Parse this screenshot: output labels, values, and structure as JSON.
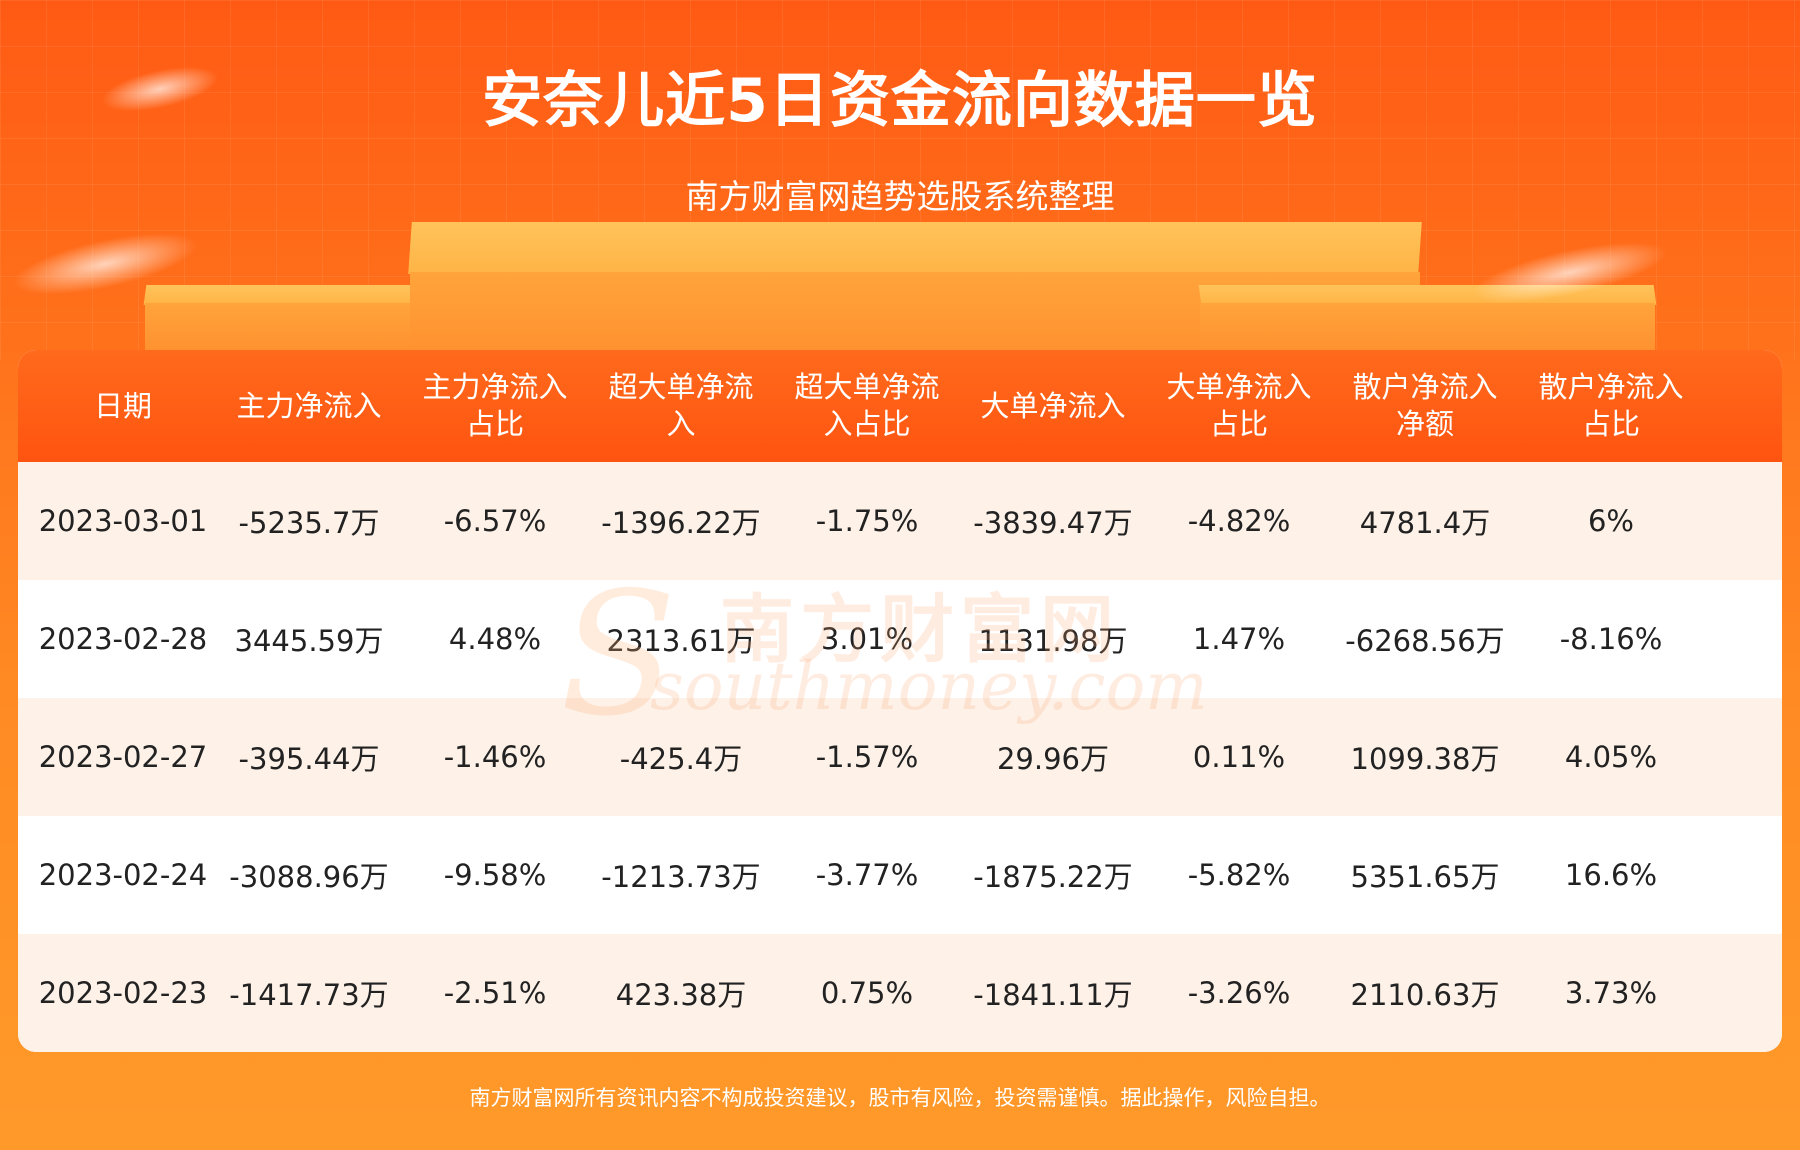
{
  "header": {
    "title": "安奈儿近5日资金流向数据一览",
    "subtitle": "南方财富网趋势选股系统整理"
  },
  "table": {
    "columns": [
      [
        "日期"
      ],
      [
        "主力净流入"
      ],
      [
        "主力净流入",
        "占比"
      ],
      [
        "超大单净流",
        "入"
      ],
      [
        "超大单净流",
        "入占比"
      ],
      [
        "大单净流入"
      ],
      [
        "大单净流入",
        "占比"
      ],
      [
        "散户净流入",
        "净额"
      ],
      [
        "散户净流入",
        "占比"
      ]
    ],
    "rows": [
      [
        "2023-03-01",
        "-5235.7万",
        "-6.57%",
        "-1396.22万",
        "-1.75%",
        "-3839.47万",
        "-4.82%",
        "4781.4万",
        "6%"
      ],
      [
        "2023-02-28",
        "3445.59万",
        "4.48%",
        "2313.61万",
        "3.01%",
        "1131.98万",
        "1.47%",
        "-6268.56万",
        "-8.16%"
      ],
      [
        "2023-02-27",
        "-395.44万",
        "-1.46%",
        "-425.4万",
        "-1.57%",
        "29.96万",
        "0.11%",
        "1099.38万",
        "4.05%"
      ],
      [
        "2023-02-24",
        "-3088.96万",
        "-9.58%",
        "-1213.73万",
        "-3.77%",
        "-1875.22万",
        "-5.82%",
        "5351.65万",
        "16.6%"
      ],
      [
        "2023-02-23",
        "-1417.73万",
        "-2.51%",
        "423.38万",
        "0.75%",
        "-1841.11万",
        "-3.26%",
        "2110.63万",
        "3.73%"
      ]
    ]
  },
  "watermark": {
    "cn": "南方财富网",
    "en": "southmoney.com",
    "s_letter": "S"
  },
  "footer": {
    "disclaimer": "南方财富网所有资讯内容不构成投资建议，股市有风险，投资需谨慎。据此操作，风险自担。"
  },
  "colors": {
    "header_bg": "#ff5a14",
    "table_head": "#ff6a1c",
    "row_alt": "#fdf1e8",
    "text": "#222222"
  }
}
